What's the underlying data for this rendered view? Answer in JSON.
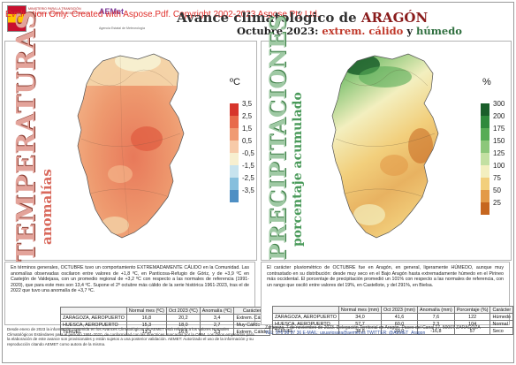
{
  "watermark": "Evaluation Only. Created with Aspose.Pdf. Copyright 2002-2023 Aspose Pty Ltd.",
  "header": {
    "ministry_text": "MINISTERIO PARA LA TRANSICIÓN ECOLÓGICA Y EL RETO DEMOGRÁFICO",
    "aemet_logo": "AEMet",
    "agency_text": "Agencia Estatal de Meteorología",
    "title_prefix": "Avance climatológico de ",
    "title_region": "ARAGÓN",
    "subtitle_period": "Octubre 2023: ",
    "subtitle_warm": "extrem. cálido",
    "subtitle_and": " y ",
    "subtitle_wet": "húmedo"
  },
  "temperature_panel": {
    "vertical_title": "TEMPERATURAS",
    "vertical_subtitle": "anomalías",
    "legend_unit": "ºC",
    "legend": [
      {
        "label": "3,5",
        "color": "#d7352b"
      },
      {
        "label": "2,5",
        "color": "#e86a4a"
      },
      {
        "label": "1,5",
        "color": "#f09a72"
      },
      {
        "label": "0,5",
        "color": "#f7caa8"
      },
      {
        "label": "-0,5",
        "color": "#f7efcf"
      },
      {
        "label": "-1,5",
        "color": "#c7e3ee"
      },
      {
        "label": "-2,5",
        "color": "#86bfdd"
      },
      {
        "label": "-3,5",
        "color": "#4e8fc4"
      }
    ],
    "text": "En términos generales, OCTUBRE tuvo un comportamiento EXTREMADAMENTE CÁLIDO en la Comunidad. Las anomalías observadas oscilaron entre valores de +1,8 ºC, en Panticosa-Refugio de Góriz, y de +3,9 ºC en Castejón de Valdejasa, con un promedio regional de +3,2 ºC con respecto a las normales de referencia (1991-2020), que para este mes son 13,4 ºC. Supone el 2º octubre más cálido de la serie histórica 1961-2023, tras el de 2022 que tuvo una anomalía de +3,7 ºC.",
    "table": {
      "headers": [
        "",
        "Normal mes (ºC)",
        "Oct 2023 (ºC)",
        "Anomalía (ºC)",
        "Carácter"
      ],
      "rows": [
        [
          "ZARAGOZA, AEROPUERTO",
          "16,8",
          "20,2",
          "3,4",
          "Extrem. Cálido"
        ],
        [
          "HUESCA, AEROPUERTO",
          "15,3",
          "18,0",
          "2,7",
          "Muy Cálido"
        ],
        [
          "TERUEL",
          "13,3",
          "16,6",
          "3,3",
          "Extrem. Cálido"
        ]
      ]
    }
  },
  "precipitation_panel": {
    "vertical_title": "PRECIPITACIONES",
    "vertical_subtitle": "porcentaje acumulado",
    "legend_unit": "%",
    "legend": [
      {
        "label": "300",
        "color": "#1a5e2a"
      },
      {
        "label": "200",
        "color": "#2f8a3c"
      },
      {
        "label": "175",
        "color": "#57ac56"
      },
      {
        "label": "150",
        "color": "#8cc77a"
      },
      {
        "label": "125",
        "color": "#c3e0a2"
      },
      {
        "label": "100",
        "color": "#f3efbf"
      },
      {
        "label": "75",
        "color": "#f2cf7c"
      },
      {
        "label": "50",
        "color": "#e39a48"
      },
      {
        "label": "25",
        "color": "#c6661f"
      }
    ],
    "text": "El carácter pluviométrico de OCTUBRE fue en Aragón, en general, ligeramente HÚMEDO, aunque muy contrastado en su distribución: desde muy seco en el Bajo Aragón hasta extremadamente húmedo en el Pirineo más occidental. El porcentaje de precipitación promedió un 101% con respecto a las normales de referencia, con un rango que osciló entre valores del 19%, en Castellote, y del 291%, en Bielsa.",
    "table": {
      "headers": [
        "",
        "Normal mes (mm)",
        "Oct 2023 (mm)",
        "Anomalía (mm)",
        "Porcentaje (%)",
        "Carácter"
      ],
      "rows": [
        [
          "ZARAGOZA, AEROPUERTO",
          "34,0",
          "41,6",
          "7,6",
          "122",
          "Húmedo"
        ],
        [
          "HUESCA, AEROPUERTO",
          "57,7",
          "60,0",
          "2,3",
          "104",
          "Normal"
        ],
        [
          "TERUEL",
          "38,8",
          "22,0",
          "-16,8",
          "57",
          "Seco"
        ]
      ]
    }
  },
  "footer": {
    "left_text": "Desde enero de 2023 la información contenida en los Avances Climatológicos de AEMET está referida a los valores Normales Climatológicos Estándares para el período 1991-2020, de conformidad con las directrices marcadas por la OMM. Los datos empleados para la elaboración de este avance son provisionales y están sujetos a una posterior validación. AEMET: Autorizado el uso de la información y su reproducción citando AEMET como autora de la misma.",
    "right_text": "Zaragoza, 7 de noviembre de 2023. Delegación Territorial en Aragón. Paseo del Canal 17. 50007 ZARAGOZA",
    "right_contact": "TEL: 976 56 97 36  E-MAIL: usuariosara@aemet.es  TWITTER: @AEMET_Aragon"
  }
}
